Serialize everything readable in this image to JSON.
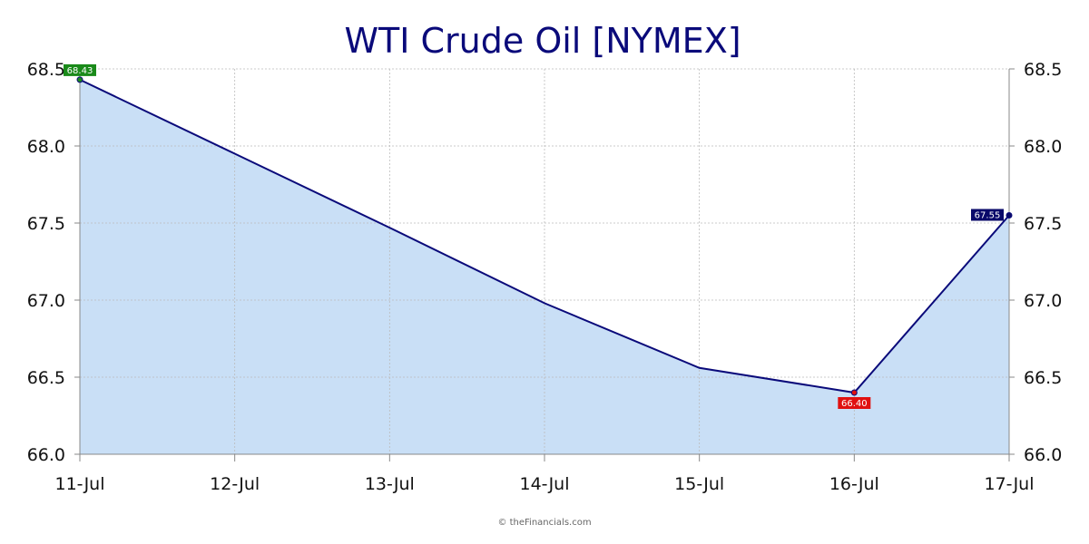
{
  "chart_data": {
    "type": "area",
    "title": "WTI Crude Oil [NYMEX]",
    "categories": [
      "11-Jul",
      "12-Jul",
      "13-Jul",
      "14-Jul",
      "15-Jul",
      "16-Jul",
      "17-Jul"
    ],
    "series": [
      {
        "values": [
          68.43,
          67.95,
          67.47,
          66.98,
          66.56,
          66.4,
          67.55
        ]
      }
    ],
    "ylim": [
      66.0,
      68.5
    ],
    "yticks": [
      "66.0",
      "66.5",
      "67.0",
      "67.5",
      "68.0",
      "68.5"
    ],
    "grid": true,
    "annotations": [
      {
        "index": 0,
        "text": "68.43",
        "kind": "high"
      },
      {
        "index": 5,
        "text": "66.40",
        "kind": "low"
      },
      {
        "index": 6,
        "text": "67.55",
        "kind": "last"
      }
    ],
    "colors": {
      "line": "#0a0a7a",
      "fill": "#c9dff6",
      "grid": "#bbbbbb",
      "high": "#1a8a1a",
      "low": "#e01010",
      "last": "#0a0a6a"
    }
  },
  "credit": "© theFinancials.com"
}
